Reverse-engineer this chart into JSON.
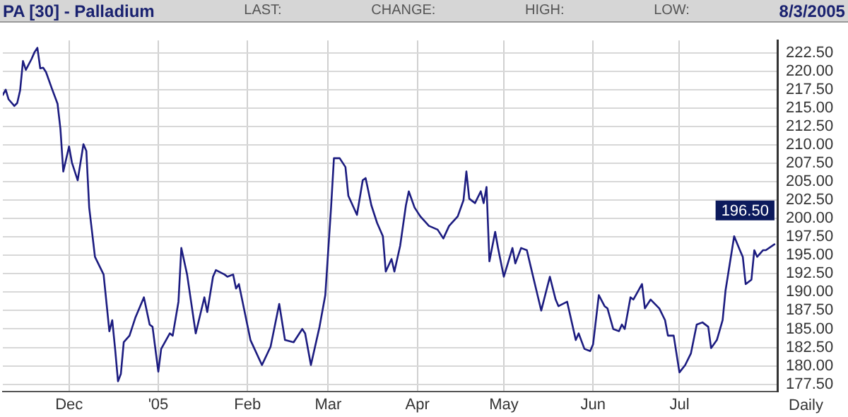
{
  "chart_data": {
    "type": "line",
    "title": "PA [30] - Palladium",
    "annotations": [
      "LAST:",
      "CHANGE:",
      "HIGH:",
      "LOW:",
      "8/3/2005",
      "Daily",
      {
        "text": "196.50",
        "x": "2005-08-03",
        "y": 196.5
      }
    ],
    "x": [
      "2004-11-08",
      "2004-11-09",
      "2004-11-10",
      "2004-11-12",
      "2004-11-13",
      "2004-11-14",
      "2004-11-15",
      "2004-11-16",
      "2004-11-18",
      "2004-11-19",
      "2004-11-20",
      "2004-11-21",
      "2004-11-22",
      "2004-11-23",
      "2004-11-25",
      "2004-11-27",
      "2004-11-28",
      "2004-11-29",
      "2004-12-01",
      "2004-12-02",
      "2004-12-04",
      "2004-12-06",
      "2004-12-07",
      "2004-12-08",
      "2004-12-10",
      "2004-12-13",
      "2004-12-15",
      "2004-12-16",
      "2004-12-17",
      "2004-12-18",
      "2004-12-19",
      "2004-12-20",
      "2004-12-22",
      "2004-12-24",
      "2004-12-27",
      "2004-12-29",
      "2004-12-30",
      "2005-01-01",
      "2005-01-02",
      "2005-01-05",
      "2005-01-06",
      "2005-01-08",
      "2005-01-09",
      "2005-01-11",
      "2005-01-14",
      "2005-01-17",
      "2005-01-18",
      "2005-01-20",
      "2005-01-21",
      "2005-01-24",
      "2005-01-25",
      "2005-01-27",
      "2005-01-28",
      "2005-01-29",
      "2005-02-02",
      "2005-02-06",
      "2005-02-09",
      "2005-02-12",
      "2005-02-14",
      "2005-02-17",
      "2005-02-20",
      "2005-02-21",
      "2005-02-23",
      "2005-02-26",
      "2005-02-28",
      "2005-03-02",
      "2005-03-03",
      "2005-03-05",
      "2005-03-07",
      "2005-03-08",
      "2005-03-11",
      "2005-03-13",
      "2005-03-14",
      "2005-03-16",
      "2005-03-18",
      "2005-03-20",
      "2005-03-21",
      "2005-03-23",
      "2005-03-24",
      "2005-03-26",
      "2005-03-28",
      "2005-03-29",
      "2005-03-31",
      "2005-04-02",
      "2005-04-05",
      "2005-04-08",
      "2005-04-10",
      "2005-04-12",
      "2005-04-15",
      "2005-04-17",
      "2005-04-18",
      "2005-04-19",
      "2005-04-21",
      "2005-04-23",
      "2005-04-24",
      "2005-04-25",
      "2005-04-26",
      "2005-04-28",
      "2005-04-29",
      "2005-05-01",
      "2005-05-04",
      "2005-05-05",
      "2005-05-07",
      "2005-05-09",
      "2005-05-11",
      "2005-05-14",
      "2005-05-17",
      "2005-05-19",
      "2005-05-20",
      "2005-05-23",
      "2005-05-26",
      "2005-05-27",
      "2005-05-29",
      "2005-05-31",
      "2005-06-01",
      "2005-06-03",
      "2005-06-05",
      "2005-06-06",
      "2005-06-08",
      "2005-06-10",
      "2005-06-11",
      "2005-06-12",
      "2005-06-14",
      "2005-06-15",
      "2005-06-18",
      "2005-06-19",
      "2005-06-21",
      "2005-06-24",
      "2005-06-26",
      "2005-06-27",
      "2005-06-29",
      "2005-07-01",
      "2005-07-03",
      "2005-07-05",
      "2005-07-07",
      "2005-07-09",
      "2005-07-11",
      "2005-07-12",
      "2005-07-14",
      "2005-07-16",
      "2005-07-17",
      "2005-07-20",
      "2005-07-22",
      "2005-07-23",
      "2005-07-24",
      "2005-07-26",
      "2005-07-27",
      "2005-07-28",
      "2005-07-30",
      "2005-07-31",
      "2005-08-03"
    ],
    "series": [
      {
        "color": "#1c1c80",
        "values": [
          216.8,
          217.5,
          216.2,
          215.3,
          215.7,
          217.4,
          221.4,
          220.2,
          221.7,
          222.6,
          223.2,
          220.4,
          220.5,
          219.9,
          217.7,
          215.6,
          212.2,
          206.4,
          209.8,
          207.6,
          205.2,
          210.1,
          209.2,
          201.5,
          194.8,
          192.4,
          184.7,
          186.2,
          182.3,
          177.9,
          178.9,
          183.2,
          184.1,
          186.5,
          189.3,
          185.6,
          185.3,
          179.2,
          182.3,
          184.4,
          184.1,
          188.7,
          196.0,
          192.4,
          184.4,
          189.3,
          187.3,
          192.1,
          193.0,
          192.4,
          192.1,
          192.4,
          190.5,
          191.1,
          183.5,
          180.1,
          182.6,
          188.4,
          183.5,
          183.2,
          185.0,
          184.4,
          180.1,
          185.3,
          189.6,
          201.5,
          208.2,
          208.2,
          207.0,
          203.1,
          200.5,
          205.2,
          205.5,
          201.8,
          199.4,
          197.6,
          192.8,
          194.5,
          192.8,
          196.3,
          201.8,
          203.7,
          201.5,
          200.3,
          199.0,
          198.5,
          197.3,
          199.0,
          200.3,
          202.5,
          206.4,
          202.7,
          202.1,
          203.7,
          202.1,
          204.3,
          194.2,
          198.2,
          196.0,
          192.1,
          196.0,
          193.9,
          196.0,
          195.7,
          192.4,
          187.5,
          192.1,
          189.0,
          188.1,
          188.7,
          183.5,
          184.4,
          182.3,
          182.0,
          182.9,
          189.6,
          188.1,
          187.8,
          185.0,
          184.7,
          185.6,
          185.0,
          189.3,
          189.0,
          191.1,
          187.8,
          189.0,
          187.8,
          186.2,
          184.1,
          184.1,
          179.1,
          180.1,
          181.7,
          185.6,
          185.9,
          185.3,
          182.4,
          183.5,
          186.2,
          190.2,
          197.6,
          195.7,
          194.8,
          191.1,
          191.7,
          195.7,
          194.8,
          195.7,
          195.7,
          196.5
        ]
      }
    ],
    "xlim": [
      "2004-11-08",
      "2005-08-04"
    ],
    "xticks": [
      {
        "value": "2004-12-01",
        "label": "Dec"
      },
      {
        "value": "2005-01-01",
        "label": "'05"
      },
      {
        "value": "2005-02-01",
        "label": "Feb"
      },
      {
        "value": "2005-03-01",
        "label": "Mar"
      },
      {
        "value": "2005-04-01",
        "label": "Apr"
      },
      {
        "value": "2005-05-01",
        "label": "May"
      },
      {
        "value": "2005-06-01",
        "label": "Jun"
      },
      {
        "value": "2005-07-01",
        "label": "Jul"
      }
    ],
    "ylim": [
      176.5,
      224.2
    ],
    "yticks": [
      {
        "value": 177.5,
        "label": "177.50"
      },
      {
        "value": 180,
        "label": "180.00"
      },
      {
        "value": 182.5,
        "label": "182.50"
      },
      {
        "value": 185,
        "label": "185.00"
      },
      {
        "value": 187.5,
        "label": "187.50"
      },
      {
        "value": 190,
        "label": "190.00"
      },
      {
        "value": 192.5,
        "label": "192.50"
      },
      {
        "value": 195,
        "label": "195.00"
      },
      {
        "value": 197.5,
        "label": "197.50"
      },
      {
        "value": 200,
        "label": "200.00"
      },
      {
        "value": 202.5,
        "label": "202.50"
      },
      {
        "value": 205,
        "label": "205.00"
      },
      {
        "value": 207.5,
        "label": "207.50"
      },
      {
        "value": 210,
        "label": "210.00"
      },
      {
        "value": 212.5,
        "label": "212.50"
      },
      {
        "value": 215,
        "label": "215.00"
      },
      {
        "value": 217.5,
        "label": "217.50"
      },
      {
        "value": 220,
        "label": "220.00"
      },
      {
        "value": 222.5,
        "label": "222.50"
      }
    ],
    "grid": true,
    "legend": false,
    "marker": "none",
    "line_style": "solid"
  }
}
